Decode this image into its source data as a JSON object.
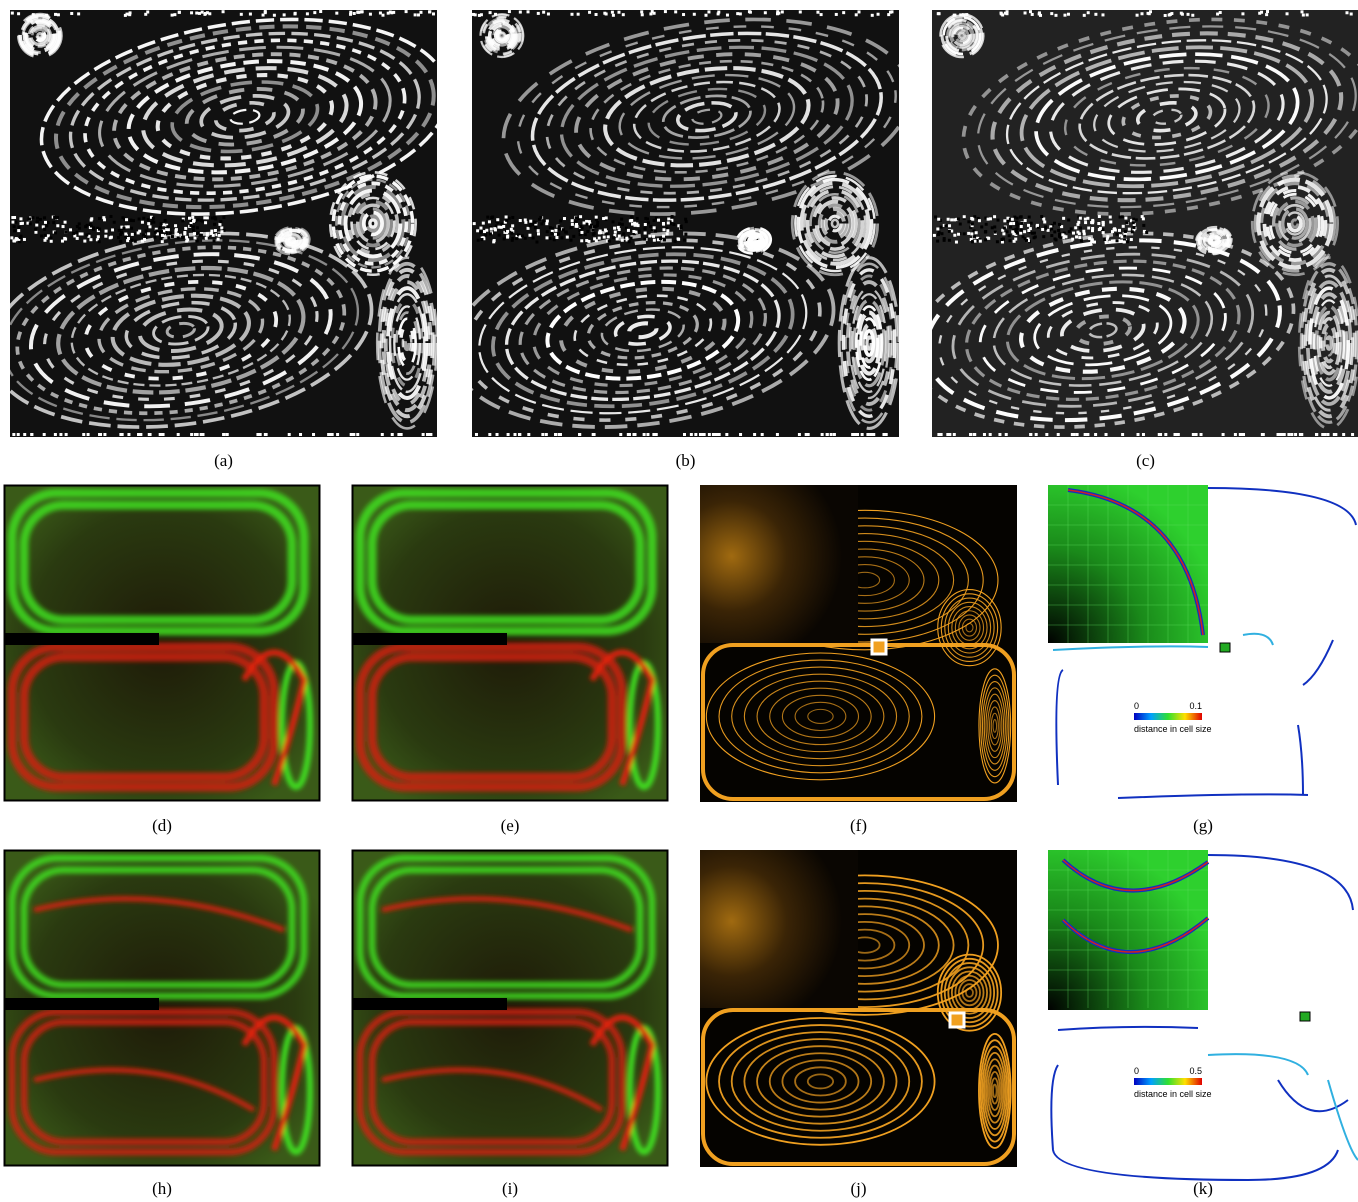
{
  "panels": [
    {
      "label": "(a)",
      "kind": "lic"
    },
    {
      "label": "(b)",
      "kind": "lic"
    },
    {
      "label": "(c)",
      "kind": "lic"
    },
    {
      "label": "(d)",
      "kind": "flow"
    },
    {
      "label": "(e)",
      "kind": "flow"
    },
    {
      "label": "(f)",
      "kind": "ftle"
    },
    {
      "label": "(g)",
      "kind": "ridge"
    },
    {
      "label": "(h)",
      "kind": "flow"
    },
    {
      "label": "(i)",
      "kind": "flow"
    },
    {
      "label": "(j)",
      "kind": "ftle"
    },
    {
      "label": "(k)",
      "kind": "ridge"
    }
  ],
  "colorbars": [
    {
      "min": 0,
      "max": 0.1,
      "title": "distance in cell size"
    },
    {
      "min": 0,
      "max": 0.5,
      "title": "distance in cell size"
    }
  ]
}
